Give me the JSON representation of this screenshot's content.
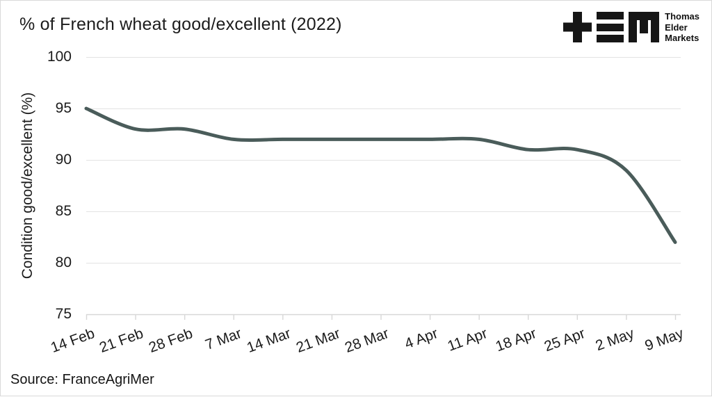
{
  "header": {
    "title": "% of French wheat good/excellent (2022)"
  },
  "logo": {
    "marks": [
      "plus-glyph",
      "triple-bar-glyph",
      "m-glyph"
    ],
    "color": "#161616",
    "lines": [
      "Thomas",
      "Elder",
      "Markets"
    ]
  },
  "footer": {
    "source": "Source: FranceAgriMer"
  },
  "chart_data": {
    "type": "line",
    "title": "% of French wheat good/excellent (2022)",
    "x": [
      "14 Feb",
      "21 Feb",
      "28 Feb",
      "7 Mar",
      "14 Mar",
      "21 Mar",
      "28 Mar",
      "4 Apr",
      "11 Apr",
      "18 Apr",
      "25 Apr",
      "2 May",
      "9 May"
    ],
    "values": [
      95,
      93,
      93,
      92,
      92,
      92,
      92,
      92,
      92,
      91,
      91,
      89,
      82
    ],
    "series_name": "Condition good/excellent (%)",
    "xlabel": "",
    "ylabel": "Condition good/excellent (%)",
    "ylim": [
      75,
      100
    ],
    "yticks": [
      75,
      80,
      85,
      90,
      95,
      100
    ],
    "grid": "horizontal",
    "legend": "none",
    "line_color": "#4a5c5a",
    "gridline_color": "#e3e3e3",
    "axis_color": "#d7d7d7",
    "text_color": "#1b1b1b",
    "background_color": "#ffffff"
  }
}
